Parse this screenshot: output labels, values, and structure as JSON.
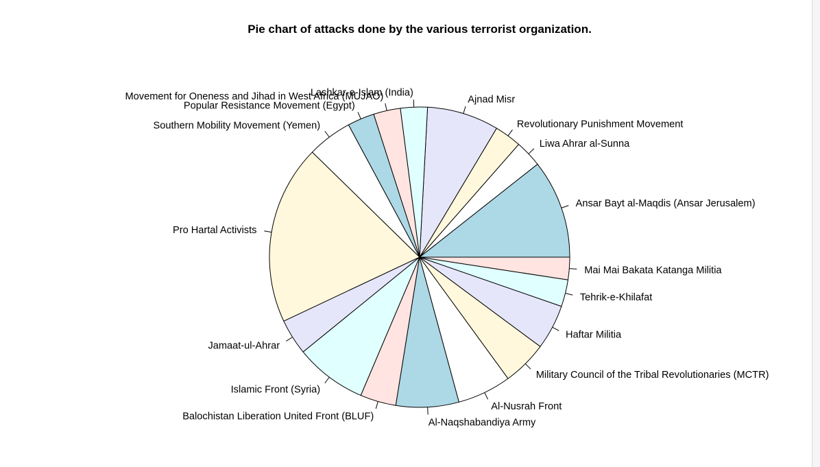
{
  "chart_data": {
    "type": "pie",
    "title": "Pie chart of attacks done by the various terrorist organization.",
    "labels": [
      "Ansar Bayt al-Maqdis (Ansar Jerusalem)",
      "Liwa Ahrar al-Sunna",
      "Revolutionary Punishment Movement",
      "Ajnad Misr",
      "Lashkar-e-Islam (India)",
      "Movement for Oneness and Jihad in West Africa (MUJAO)",
      "Popular Resistance Movement (Egypt)",
      "Southern Mobility Movement (Yemen)",
      "Pro Hartal Activists",
      "Jamaat-ul-Ahrar",
      "Islamic Front (Syria)",
      "Balochistan Liberation United Front (BLUF)",
      "Al-Naqshabandiya Army",
      "Al-Nusrah Front",
      "Military Council of the Tribal Revolutionaries (MCTR)",
      "Haftar Militia",
      "Tehrik-e-Khilafat",
      "Mai Mai Bakata Katanga Militia"
    ],
    "values": [
      11,
      3,
      3,
      8,
      3,
      3,
      3,
      5,
      20,
      4,
      8,
      4,
      7,
      6,
      5,
      5,
      3,
      2.5
    ],
    "colors": [
      "#add8e6",
      "#ffffff",
      "#fff8dc",
      "#e6e6fa",
      "#e0ffff",
      "#ffe4e1",
      "#add8e6",
      "#ffffff",
      "#fff8dc",
      "#e6e6fa",
      "#e0ffff",
      "#ffe4e1",
      "#add8e6",
      "#ffffff",
      "#fff8dc",
      "#e6e6fa",
      "#e0ffff",
      "#ffe4e1"
    ],
    "start_angle_deg": 0,
    "direction": "counterclockwise"
  }
}
